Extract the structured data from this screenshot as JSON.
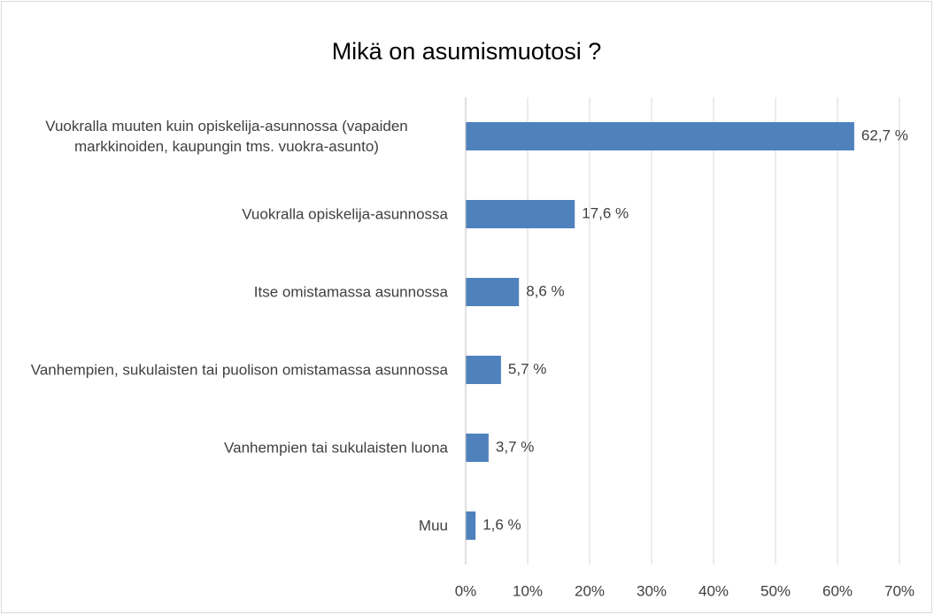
{
  "chart_data": {
    "type": "bar",
    "orientation": "horizontal",
    "title": "Mikä on asumismuotosi ?",
    "categories": [
      "Vuokralla muuten kuin opiskelija-asunnossa (vapaiden markkinoiden, kaupungin tms. vuokra-asunto)",
      "Vuokralla opiskelija-asunnossa",
      "Itse omistamassa asunnossa",
      "Vanhempien, sukulaisten tai puolison omistamassa asunnossa",
      "Vanhempien tai sukulaisten luona",
      "Muu"
    ],
    "values": [
      62.7,
      17.6,
      8.6,
      5.7,
      3.7,
      1.6
    ],
    "value_labels": [
      "62,7 %",
      "17,6 %",
      "8,6 %",
      "5,7 %",
      "3,7 %",
      "1,6 %"
    ],
    "color": "#4f81bd",
    "xlim": [
      0,
      70
    ],
    "xticks": [
      {
        "value": 0,
        "label": "0%"
      },
      {
        "value": 10,
        "label": "10%"
      },
      {
        "value": 20,
        "label": "20%"
      },
      {
        "value": 30,
        "label": "30%"
      },
      {
        "value": 40,
        "label": "40%"
      },
      {
        "value": 50,
        "label": "50%"
      },
      {
        "value": 60,
        "label": "60%"
      },
      {
        "value": 70,
        "label": "70%"
      }
    ],
    "grid": true
  }
}
